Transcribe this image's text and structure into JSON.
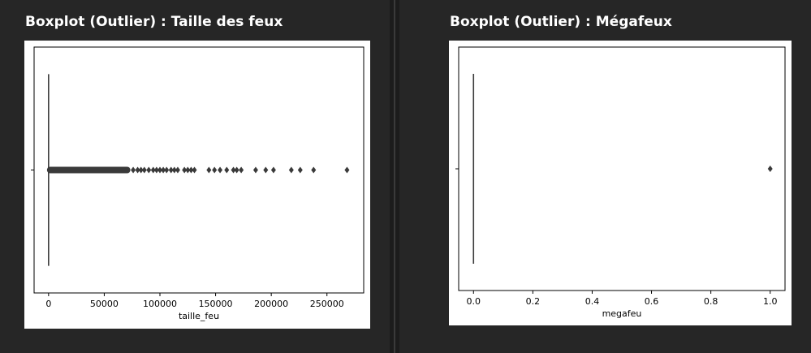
{
  "charts": [
    {
      "title": "Boxplot (Outlier) : Taille des feux"
    },
    {
      "title": "Boxplot (Outlier) : Mégafeux"
    }
  ],
  "chart_data": [
    {
      "type": "boxplot",
      "orientation": "horizontal",
      "title": "Boxplot (Outlier) : Taille des feux",
      "xlabel": "taille_feu",
      "ylabel": "",
      "xlim": [
        -13000,
        283000
      ],
      "xticks": [
        0,
        50000,
        100000,
        150000,
        200000,
        250000
      ],
      "xtick_labels": [
        "0",
        "50000",
        "100000",
        "150000",
        "200000",
        "250000"
      ],
      "box": {
        "q1": 0,
        "median": 0,
        "q3": 0,
        "whisker_low": 0,
        "whisker_high": 0
      },
      "outlier_dense_range": [
        0,
        72000
      ],
      "outliers": [
        76000,
        80000,
        83000,
        86000,
        90000,
        94000,
        97000,
        100000,
        103000,
        106000,
        110000,
        113000,
        116000,
        122000,
        125000,
        128000,
        131000,
        144000,
        149000,
        154000,
        160000,
        166000,
        169000,
        173000,
        186000,
        195000,
        202000,
        218000,
        226000,
        238000,
        268000
      ],
      "grid": false,
      "marker_color": "#3a3a3a"
    },
    {
      "type": "boxplot",
      "orientation": "horizontal",
      "title": "Boxplot (Outlier) : Mégafeux",
      "xlabel": "megafeu",
      "ylabel": "",
      "xlim": [
        -0.05,
        1.05
      ],
      "xticks": [
        0.0,
        0.2,
        0.4,
        0.6,
        0.8,
        1.0
      ],
      "xtick_labels": [
        "0.0",
        "0.2",
        "0.4",
        "0.6",
        "0.8",
        "1.0"
      ],
      "box": {
        "q1": 0,
        "median": 0,
        "q3": 0,
        "whisker_low": 0,
        "whisker_high": 0
      },
      "outliers": [
        1.0
      ],
      "grid": false,
      "marker_color": "#3a3a3a"
    }
  ]
}
